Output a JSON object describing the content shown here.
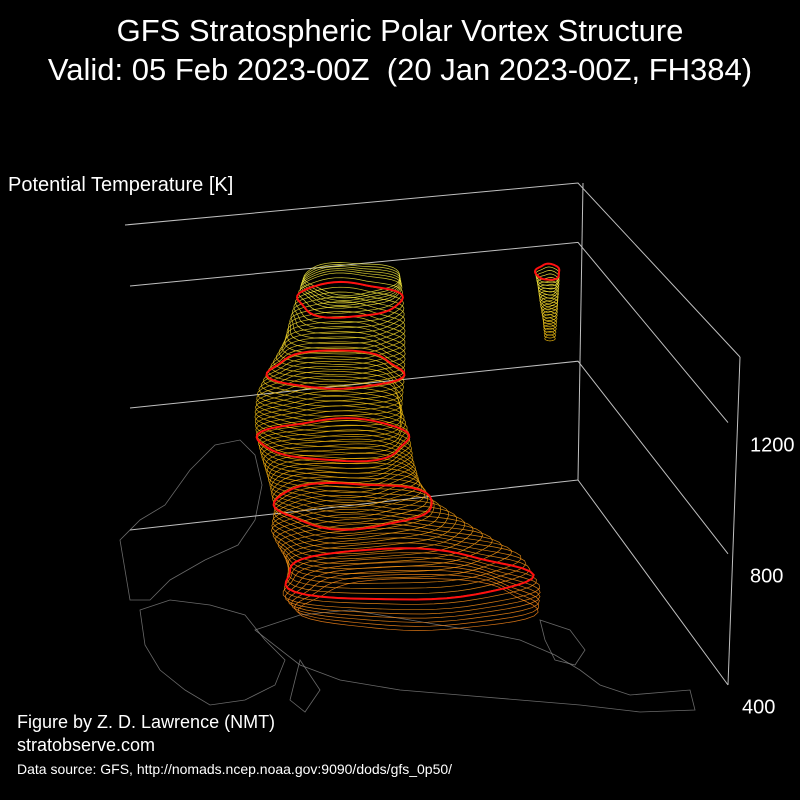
{
  "title": {
    "line1": "GFS Stratospheric Polar Vortex Structure",
    "line2": "Valid: 05 Feb 2023-00Z  (20 Jan 2023-00Z, FH384)"
  },
  "colors": {
    "background": "#000000",
    "text": "#ffffff",
    "axis_lines": "#bfbfbf",
    "coastlines": "#8c8c8c",
    "vortex_low": "#ff8a1a",
    "vortex_mid": "#f5b80a",
    "vortex_high": "#f7f043",
    "highlight_contours": "#ff1010"
  },
  "chart_data": {
    "type": "3d-isosurface",
    "zlabel": "Potential Temperature [K]",
    "z_ticks": [
      "400",
      "800",
      "1200"
    ],
    "z_range": [
      400,
      1400
    ],
    "highlighted_levels": [
      500,
      700,
      900,
      1100,
      1300
    ],
    "grid": true,
    "structures": [
      {
        "name": "",
        "z_range": [
          400,
          1400
        ]
      },
      {
        "name": "",
        "z_range": [
          1150,
          1350
        ]
      }
    ]
  },
  "credits": {
    "author": "Figure by Z. D. Lawrence (NMT)",
    "site": "stratobserve.com",
    "source": "Data source: GFS, http://nomads.ncep.noaa.gov:9090/dods/gfs_0p50/"
  }
}
